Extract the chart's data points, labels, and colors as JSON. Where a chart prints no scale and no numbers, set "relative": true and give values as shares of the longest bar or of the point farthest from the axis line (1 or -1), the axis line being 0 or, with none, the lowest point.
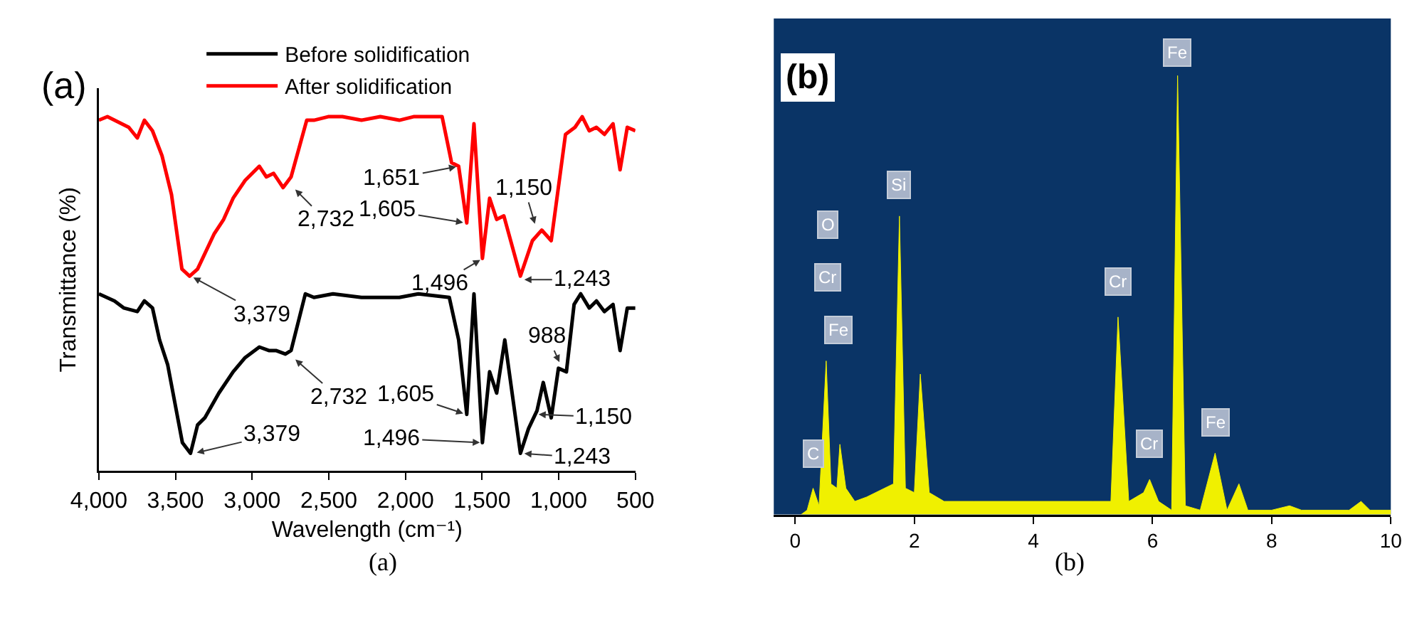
{
  "chart_data": [
    {
      "type": "line",
      "relative": true,
      "ylabel": "Transmittance (%)",
      "xlabel": "Wavelength (cm⁻¹)",
      "xlim": [
        4000,
        500
      ],
      "xticks": [
        {
          "value": 4000,
          "label": "4,000"
        },
        {
          "value": 3500,
          "label": "3,500"
        },
        {
          "value": 3000,
          "label": "3,000"
        },
        {
          "value": 2500,
          "label": "2,500"
        },
        {
          "value": 2000,
          "label": "2,000"
        },
        {
          "value": 1500,
          "label": "1,500"
        },
        {
          "value": 1000,
          "label": "1,000"
        },
        500
      ],
      "legend": "top",
      "series": [
        {
          "name": "Before solidification",
          "color": "#000000",
          "x": [
            4000,
            3898,
            3836,
            3749,
            3703,
            3650,
            3604,
            3551,
            3455,
            3402,
            3356,
            3309,
            3217,
            3124,
            3046,
            2953,
            2891,
            2845,
            2783,
            2746,
            2653,
            2597,
            2473,
            2287,
            2164,
            2040,
            1916,
            1714,
            1653,
            1600,
            1553,
            1498,
            1451,
            1405,
            1352,
            1250,
            1197,
            1142,
            1101,
            1049,
            1002,
            950,
            900,
            857,
            801,
            754,
            702,
            646,
            600,
            553,
            500
          ],
          "values": [
            0.5,
            0.48,
            0.46,
            0.45,
            0.48,
            0.46,
            0.37,
            0.3,
            0.08,
            0.05,
            0.13,
            0.15,
            0.22,
            0.28,
            0.32,
            0.35,
            0.34,
            0.34,
            0.33,
            0.34,
            0.5,
            0.49,
            0.5,
            0.49,
            0.49,
            0.49,
            0.5,
            0.49,
            0.37,
            0.16,
            0.5,
            0.08,
            0.28,
            0.22,
            0.37,
            0.05,
            0.12,
            0.17,
            0.25,
            0.15,
            0.29,
            0.28,
            0.47,
            0.5,
            0.46,
            0.48,
            0.45,
            0.47,
            0.34,
            0.46,
            0.46
          ]
        },
        {
          "name": "After solidification",
          "color": "#ff0000",
          "x": [
            4000,
            3944,
            3805,
            3749,
            3703,
            3650,
            3588,
            3526,
            3458,
            3408,
            3356,
            3247,
            3186,
            3124,
            3046,
            2953,
            2907,
            2860,
            2798,
            2746,
            2644,
            2597,
            2504,
            2411,
            2287,
            2164,
            2040,
            1947,
            1761,
            1699,
            1653,
            1600,
            1553,
            1498,
            1451,
            1405,
            1358,
            1250,
            1172,
            1111,
            1049,
            956,
            894,
            847,
            801,
            754,
            702,
            646,
            600,
            553,
            500
          ],
          "values": [
            0.99,
            1.0,
            0.97,
            0.94,
            0.99,
            0.96,
            0.89,
            0.78,
            0.57,
            0.55,
            0.57,
            0.67,
            0.71,
            0.77,
            0.82,
            0.86,
            0.83,
            0.84,
            0.8,
            0.83,
            0.99,
            0.99,
            1.0,
            1.0,
            0.99,
            1.0,
            0.99,
            1.0,
            1.0,
            0.87,
            0.86,
            0.7,
            0.98,
            0.6,
            0.77,
            0.71,
            0.72,
            0.55,
            0.65,
            0.68,
            0.65,
            0.95,
            0.97,
            1.0,
            0.96,
            0.97,
            0.95,
            0.98,
            0.85,
            0.97,
            0.96
          ]
        }
      ],
      "annotations": [
        {
          "text": "2,732",
          "x": 2732,
          "y": 0.8
        },
        {
          "text": "3,379",
          "x": 3400,
          "y": 0.55
        },
        {
          "text": "1,651",
          "x": 1651,
          "y": 0.86
        },
        {
          "text": "1,605",
          "x": 1605,
          "y": 0.7
        },
        {
          "text": "1,496",
          "x": 1496,
          "y": 0.6
        },
        {
          "text": "1,150",
          "x": 1150,
          "y": 0.69
        },
        {
          "text": "1,243",
          "x": 1243,
          "y": 0.54
        },
        {
          "text": "3,379",
          "x": 3379,
          "y": 0.05
        },
        {
          "text": "2,732",
          "x": 2732,
          "y": 0.32
        },
        {
          "text": "1,605",
          "x": 1605,
          "y": 0.16
        },
        {
          "text": "1,496",
          "x": 1496,
          "y": 0.08
        },
        {
          "text": "1,243",
          "x": 1243,
          "y": 0.05
        },
        {
          "text": "1,150",
          "x": 1150,
          "y": 0.16
        },
        {
          "text": "988",
          "x": 988,
          "y": 0.3
        },
        "(a)",
        "(a)"
      ]
    },
    {
      "type": "area",
      "relative": true,
      "xlim": [
        -0.36,
        10
      ],
      "xticks": [
        0,
        2,
        4,
        6,
        8,
        10
      ],
      "series": [
        {
          "color": "#f0f000",
          "x": [
            0.1,
            0.2,
            0.3,
            0.4,
            0.52,
            0.6,
            0.7,
            0.75,
            0.85,
            1.0,
            1.2,
            1.5,
            1.65,
            1.75,
            1.85,
            2.0,
            2.1,
            2.25,
            2.5,
            3,
            4,
            5,
            5.3,
            5.42,
            5.6,
            5.85,
            5.95,
            6.1,
            6.32,
            6.42,
            6.55,
            6.8,
            7.05,
            7.25,
            7.45,
            7.6,
            8.0,
            8.3,
            8.5,
            9.3,
            9.5,
            9.65,
            10
          ],
          "values": [
            0,
            0.01,
            0.06,
            0.02,
            0.35,
            0.07,
            0.06,
            0.16,
            0.06,
            0.03,
            0.04,
            0.06,
            0.07,
            0.68,
            0.06,
            0.05,
            0.32,
            0.05,
            0.03,
            0.03,
            0.03,
            0.03,
            0.03,
            0.45,
            0.03,
            0.05,
            0.08,
            0.03,
            0.01,
            1,
            0.02,
            0.01,
            0.14,
            0.01,
            0.07,
            0.01,
            0.01,
            0.02,
            0.01,
            0.01,
            0.03,
            0.01,
            0.01
          ]
        }
      ],
      "annotations": [
        {
          "text": "C",
          "x": 0.3,
          "y": 0.14
        },
        {
          "text": "O",
          "x": 0.54,
          "y": 0.66
        },
        {
          "text": "Cr",
          "x": 0.54,
          "y": 0.54
        },
        {
          "text": "Fe",
          "x": 0.73,
          "y": 0.42
        },
        {
          "text": "Si",
          "x": 1.75,
          "y": 0.75
        },
        {
          "text": "Cr",
          "x": 5.42,
          "y": 0.53
        },
        {
          "text": "Cr",
          "x": 5.95,
          "y": 0.16
        },
        {
          "text": "Fe",
          "x": 6.42,
          "y": 1
        },
        {
          "text": "Fe",
          "x": 7.05,
          "y": 0.21
        },
        "(b)",
        "(b)"
      ]
    }
  ]
}
